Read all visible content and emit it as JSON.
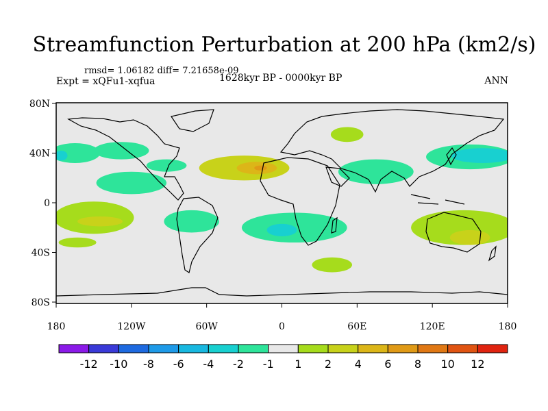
{
  "title": "Streamfunction Perturbation at 200 hPa (km2/s)",
  "stats": "rmsd= 1.06182 diff= 7.21658e-09",
  "expt": "Expt = xQFu1-xqfua",
  "period": "1628kyr BP - 0000kyr BP",
  "season": "ANN",
  "lat_ticks": [
    {
      "label": "80N",
      "lat": 80
    },
    {
      "label": "40N",
      "lat": 40
    },
    {
      "label": "0",
      "lat": 0
    },
    {
      "label": "40S",
      "lat": -40
    },
    {
      "label": "80S",
      "lat": -80
    }
  ],
  "lon_ticks": [
    {
      "label": "180",
      "lon": -180
    },
    {
      "label": "120W",
      "lon": -120
    },
    {
      "label": "60W",
      "lon": -60
    },
    {
      "label": "0",
      "lon": 0
    },
    {
      "label": "60E",
      "lon": 60
    },
    {
      "label": "120E",
      "lon": 120
    },
    {
      "label": "180",
      "lon": 180
    }
  ],
  "colorbar": {
    "colors": [
      "#8b1ae8",
      "#3a3ad8",
      "#1e6ae0",
      "#1e9ae8",
      "#18b8e0",
      "#18d0d0",
      "#2ee49a",
      "#e8e8e8",
      "#a6dc1c",
      "#c8d21a",
      "#dcb618",
      "#e09a16",
      "#e07814",
      "#e05412",
      "#e02410"
    ],
    "labels": [
      "-12",
      "-10",
      "-8",
      "-6",
      "-4",
      "-2",
      "-1",
      "1",
      "2",
      "4",
      "6",
      "8",
      "10",
      "12"
    ]
  },
  "anomalies": [
    {
      "name": "north-atlantic-africa-high",
      "level": "2",
      "lon": -30,
      "lat": 28,
      "rlon": 36,
      "rlat": 10
    },
    {
      "name": "north-africa-core",
      "level": "4",
      "lon": -20,
      "lat": 28,
      "rlon": 16,
      "rlat": 5
    },
    {
      "name": "north-africa-core-inner",
      "level": "6",
      "lon": -17,
      "lat": 28,
      "rlon": 5,
      "rlat": 2
    },
    {
      "name": "north-pacific-west-low",
      "level": "-1",
      "lon": -165,
      "lat": 40,
      "rlon": 20,
      "rlat": 8
    },
    {
      "name": "north-pacific-east-low",
      "level": "-1",
      "lon": -128,
      "lat": 42,
      "rlon": 22,
      "rlat": 7
    },
    {
      "name": "north-pacific-spot",
      "level": "-2",
      "lon": -176,
      "lat": 38,
      "rlon": 5,
      "rlat": 4
    },
    {
      "name": "eastern-pacific-low",
      "level": "-1",
      "lon": -120,
      "lat": 16,
      "rlon": 28,
      "rlat": 9
    },
    {
      "name": "gulf-low",
      "level": "-1",
      "lon": -92,
      "lat": 30,
      "rlon": 16,
      "rlat": 5
    },
    {
      "name": "south-pacific-high",
      "level": "1",
      "lon": -150,
      "lat": -12,
      "rlon": 32,
      "rlat": 13
    },
    {
      "name": "south-pacific-high-core",
      "level": "2",
      "lon": -145,
      "lat": -15,
      "rlon": 18,
      "rlat": 4
    },
    {
      "name": "subtropical-pacific-south",
      "level": "1",
      "lon": -163,
      "lat": -32,
      "rlon": 15,
      "rlat": 4
    },
    {
      "name": "arabia-high",
      "level": "1",
      "lon": 52,
      "lat": 55,
      "rlon": 13,
      "rlat": 6
    },
    {
      "name": "south-america-low",
      "level": "-1",
      "lon": -72,
      "lat": -15,
      "rlon": 22,
      "rlat": 9
    },
    {
      "name": "south-atlantic-low",
      "level": "-1",
      "lon": 10,
      "lat": -20,
      "rlon": 42,
      "rlat": 12
    },
    {
      "name": "south-atlantic-core",
      "level": "-2",
      "lon": 0,
      "lat": -22,
      "rlon": 12,
      "rlat": 5
    },
    {
      "name": "indian-low",
      "level": "-1",
      "lon": 75,
      "lat": 25,
      "rlon": 30,
      "rlat": 10
    },
    {
      "name": "west-pacific-low",
      "level": "-1",
      "lon": 150,
      "lat": 37,
      "rlon": 35,
      "rlat": 10
    },
    {
      "name": "west-pacific-core",
      "level": "-2",
      "lon": 160,
      "lat": 38,
      "rlon": 25,
      "rlat": 6
    },
    {
      "name": "australia-high",
      "level": "1",
      "lon": 145,
      "lat": -20,
      "rlon": 42,
      "rlat": 14
    },
    {
      "name": "australia-high-core",
      "level": "2",
      "lon": 150,
      "lat": -28,
      "rlon": 16,
      "rlat": 6
    },
    {
      "name": "southern-ocean-high",
      "level": "1",
      "lon": 40,
      "lat": -50,
      "rlon": 16,
      "rlat": 6
    }
  ]
}
